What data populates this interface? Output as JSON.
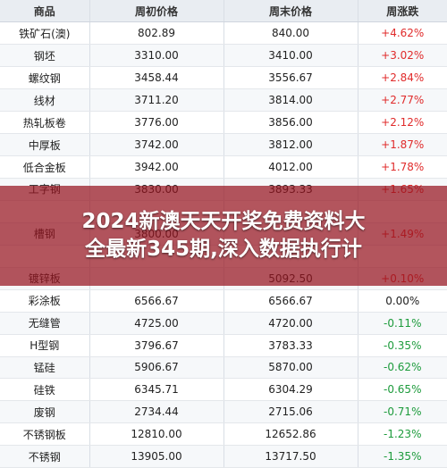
{
  "table": {
    "headers": [
      "商品",
      "周初价格",
      "周末价格",
      "周涨跌"
    ],
    "rows": [
      {
        "name": "铁矿石(澳)",
        "start": "802.89",
        "end": "840.00",
        "change": "+4.62%",
        "dir": "up"
      },
      {
        "name": "钢坯",
        "start": "3310.00",
        "end": "3410.00",
        "change": "+3.02%",
        "dir": "up"
      },
      {
        "name": "螺纹钢",
        "start": "3458.44",
        "end": "3556.67",
        "change": "+2.84%",
        "dir": "up"
      },
      {
        "name": "线材",
        "start": "3711.20",
        "end": "3814.00",
        "change": "+2.77%",
        "dir": "up"
      },
      {
        "name": "热轧板卷",
        "start": "3776.00",
        "end": "3856.00",
        "change": "+2.12%",
        "dir": "up"
      },
      {
        "name": "中厚板",
        "start": "3742.00",
        "end": "3812.00",
        "change": "+1.87%",
        "dir": "up"
      },
      {
        "name": "低合金板",
        "start": "3942.00",
        "end": "4012.00",
        "change": "+1.78%",
        "dir": "up"
      },
      {
        "name": "工字钢",
        "start": "3830.00",
        "end": "3893.33",
        "change": "+1.65%",
        "dir": "up"
      },
      {
        "name": "",
        "start": "",
        "end": "",
        "change": "",
        "dir": "up"
      },
      {
        "name": "槽钢",
        "start": "3800.00",
        "end": "",
        "change": "+1.49%",
        "dir": "up"
      },
      {
        "name": "",
        "start": "",
        "end": "",
        "change": "",
        "dir": "up"
      },
      {
        "name": "镀锌板",
        "start": "",
        "end": "5092.50",
        "change": "+0.10%",
        "dir": "up"
      },
      {
        "name": "彩涂板",
        "start": "6566.67",
        "end": "6566.67",
        "change": "0.00%",
        "dir": "flat"
      },
      {
        "name": "无缝管",
        "start": "4725.00",
        "end": "4720.00",
        "change": "-0.11%",
        "dir": "down"
      },
      {
        "name": "H型钢",
        "start": "3796.67",
        "end": "3783.33",
        "change": "-0.35%",
        "dir": "down"
      },
      {
        "name": "锰硅",
        "start": "5906.67",
        "end": "5870.00",
        "change": "-0.62%",
        "dir": "down"
      },
      {
        "name": "硅铁",
        "start": "6345.71",
        "end": "6304.29",
        "change": "-0.65%",
        "dir": "down"
      },
      {
        "name": "废钢",
        "start": "2734.44",
        "end": "2715.06",
        "change": "-0.71%",
        "dir": "down"
      },
      {
        "name": "不锈钢板",
        "start": "12810.00",
        "end": "12652.86",
        "change": "-1.23%",
        "dir": "down"
      },
      {
        "name": "不锈钢",
        "start": "13905.00",
        "end": "13717.50",
        "change": "-1.35%",
        "dir": "down"
      }
    ]
  },
  "banner": {
    "text": "2024新澳天天开奖免费资料大\n全最新345期,深入数据执行计"
  },
  "colors": {
    "up": "#e02b2b",
    "down": "#1d9b3c",
    "header_bg": "#e9edf2",
    "banner_bg": "rgba(150,20,30,0.72)"
  }
}
